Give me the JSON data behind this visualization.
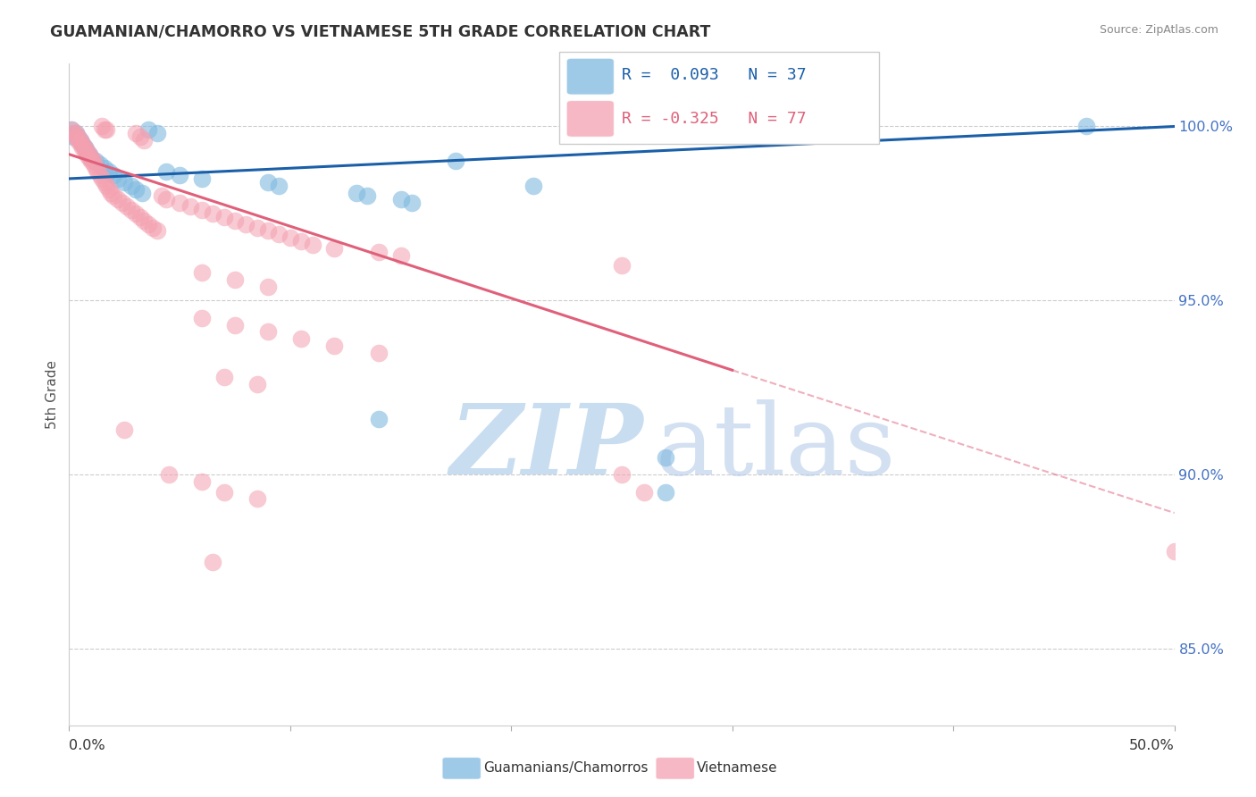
{
  "title": "GUAMANIAN/CHAMORRO VS VIETNAMESE 5TH GRADE CORRELATION CHART",
  "source": "Source: ZipAtlas.com",
  "ylabel": "5th Grade",
  "ytick_values": [
    0.85,
    0.9,
    0.95,
    1.0
  ],
  "ytick_labels": [
    "85.0%",
    "90.0%",
    "95.0%",
    "100.0%"
  ],
  "xlim": [
    0.0,
    0.5
  ],
  "ylim": [
    0.828,
    1.018
  ],
  "legend_blue_label": "Guamanians/Chamorros",
  "legend_pink_label": "Vietnamese",
  "blue_color": "#7fb9e0",
  "pink_color": "#f4a0b0",
  "blue_line_color": "#1a5fa8",
  "pink_line_color": "#e0607a",
  "blue_dots": [
    [
      0.001,
      0.999
    ],
    [
      0.002,
      0.997
    ],
    [
      0.003,
      0.998
    ],
    [
      0.004,
      0.997
    ],
    [
      0.005,
      0.996
    ],
    [
      0.006,
      0.995
    ],
    [
      0.007,
      0.994
    ],
    [
      0.008,
      0.993
    ],
    [
      0.009,
      0.992
    ],
    [
      0.01,
      0.991
    ],
    [
      0.012,
      0.99
    ],
    [
      0.014,
      0.989
    ],
    [
      0.016,
      0.988
    ],
    [
      0.018,
      0.987
    ],
    [
      0.02,
      0.986
    ],
    [
      0.022,
      0.985
    ],
    [
      0.025,
      0.984
    ],
    [
      0.028,
      0.983
    ],
    [
      0.03,
      0.982
    ],
    [
      0.033,
      0.981
    ],
    [
      0.036,
      0.999
    ],
    [
      0.04,
      0.998
    ],
    [
      0.044,
      0.987
    ],
    [
      0.05,
      0.986
    ],
    [
      0.06,
      0.985
    ],
    [
      0.09,
      0.984
    ],
    [
      0.095,
      0.983
    ],
    [
      0.13,
      0.981
    ],
    [
      0.135,
      0.98
    ],
    [
      0.15,
      0.979
    ],
    [
      0.155,
      0.978
    ],
    [
      0.175,
      0.99
    ],
    [
      0.21,
      0.983
    ],
    [
      0.14,
      0.916
    ],
    [
      0.27,
      0.905
    ],
    [
      0.27,
      0.895
    ],
    [
      0.46,
      1.0
    ]
  ],
  "pink_dots": [
    [
      0.001,
      0.999
    ],
    [
      0.002,
      0.998
    ],
    [
      0.003,
      0.998
    ],
    [
      0.003,
      0.997
    ],
    [
      0.004,
      0.997
    ],
    [
      0.004,
      0.996
    ],
    [
      0.005,
      0.996
    ],
    [
      0.005,
      0.995
    ],
    [
      0.006,
      0.995
    ],
    [
      0.006,
      0.994
    ],
    [
      0.007,
      0.994
    ],
    [
      0.007,
      0.993
    ],
    [
      0.008,
      0.993
    ],
    [
      0.008,
      0.992
    ],
    [
      0.009,
      0.992
    ],
    [
      0.009,
      0.991
    ],
    [
      0.01,
      0.991
    ],
    [
      0.01,
      0.99
    ],
    [
      0.011,
      0.99
    ],
    [
      0.011,
      0.989
    ],
    [
      0.012,
      0.988
    ],
    [
      0.013,
      0.987
    ],
    [
      0.014,
      0.986
    ],
    [
      0.015,
      0.985
    ],
    [
      0.016,
      0.984
    ],
    [
      0.017,
      0.983
    ],
    [
      0.018,
      0.982
    ],
    [
      0.019,
      0.981
    ],
    [
      0.02,
      0.98
    ],
    [
      0.022,
      0.979
    ],
    [
      0.024,
      0.978
    ],
    [
      0.026,
      0.977
    ],
    [
      0.028,
      0.976
    ],
    [
      0.03,
      0.975
    ],
    [
      0.032,
      0.974
    ],
    [
      0.034,
      0.973
    ],
    [
      0.036,
      0.972
    ],
    [
      0.038,
      0.971
    ],
    [
      0.04,
      0.97
    ],
    [
      0.015,
      1.0
    ],
    [
      0.016,
      0.999
    ],
    [
      0.017,
      0.999
    ],
    [
      0.03,
      0.998
    ],
    [
      0.032,
      0.997
    ],
    [
      0.034,
      0.996
    ],
    [
      0.042,
      0.98
    ],
    [
      0.044,
      0.979
    ],
    [
      0.05,
      0.978
    ],
    [
      0.055,
      0.977
    ],
    [
      0.06,
      0.976
    ],
    [
      0.065,
      0.975
    ],
    [
      0.07,
      0.974
    ],
    [
      0.075,
      0.973
    ],
    [
      0.08,
      0.972
    ],
    [
      0.085,
      0.971
    ],
    [
      0.09,
      0.97
    ],
    [
      0.095,
      0.969
    ],
    [
      0.1,
      0.968
    ],
    [
      0.105,
      0.967
    ],
    [
      0.11,
      0.966
    ],
    [
      0.12,
      0.965
    ],
    [
      0.14,
      0.964
    ],
    [
      0.15,
      0.963
    ],
    [
      0.06,
      0.958
    ],
    [
      0.075,
      0.956
    ],
    [
      0.09,
      0.954
    ],
    [
      0.06,
      0.945
    ],
    [
      0.075,
      0.943
    ],
    [
      0.09,
      0.941
    ],
    [
      0.105,
      0.939
    ],
    [
      0.12,
      0.937
    ],
    [
      0.14,
      0.935
    ],
    [
      0.07,
      0.928
    ],
    [
      0.085,
      0.926
    ],
    [
      0.025,
      0.913
    ],
    [
      0.045,
      0.9
    ],
    [
      0.06,
      0.898
    ],
    [
      0.07,
      0.895
    ],
    [
      0.085,
      0.893
    ],
    [
      0.25,
      0.96
    ],
    [
      0.25,
      0.9
    ],
    [
      0.26,
      0.895
    ],
    [
      0.065,
      0.875
    ],
    [
      0.5,
      0.878
    ]
  ],
  "blue_line": [
    [
      0.0,
      0.985
    ],
    [
      0.5,
      1.0
    ]
  ],
  "pink_line_solid": [
    [
      0.0,
      0.992
    ],
    [
      0.3,
      0.93
    ]
  ],
  "pink_line_dash": [
    [
      0.3,
      0.93
    ],
    [
      0.5,
      0.889
    ]
  ]
}
